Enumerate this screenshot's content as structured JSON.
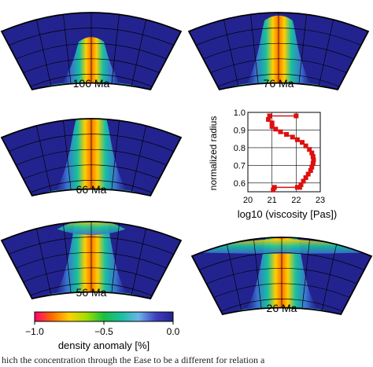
{
  "panels": [
    {
      "label": "106 Ma",
      "stage": 0
    },
    {
      "label": "76 Ma",
      "stage": 1
    },
    {
      "label": "66 Ma",
      "stage": 2
    },
    {
      "label": "56 Ma",
      "stage": 3
    },
    {
      "label": "26 Ma",
      "stage": 4
    }
  ],
  "colorbar": {
    "title": "density anomaly [%]",
    "ticks": [
      "−1.0",
      "−0.5",
      "0.0"
    ],
    "tick_values": [
      -1.0,
      -0.5,
      0.0
    ],
    "colors": [
      "#ff0070",
      "#ff6a00",
      "#ffd000",
      "#a0e000",
      "#18c040",
      "#18c0a0",
      "#6ab4e8",
      "#4040c0",
      "#23238f"
    ]
  },
  "chart_data": {
    "type": "line",
    "title": "",
    "xlabel": "log10 (viscosity [Pas])",
    "ylabel": "normalized radius",
    "xlim": [
      20,
      23
    ],
    "ylim": [
      0.55,
      1.0
    ],
    "xticks": [
      "20",
      "21",
      "22",
      "23"
    ],
    "yticks": [
      "0.6",
      "0.7",
      "0.8",
      "0.9",
      "1.0"
    ],
    "series": [
      {
        "color": "#dd1010",
        "points": [
          [
            22.0,
            0.98
          ],
          [
            20.9,
            0.98
          ],
          [
            20.85,
            0.96
          ],
          [
            21.0,
            0.94
          ],
          [
            21.0,
            0.92
          ],
          [
            21.15,
            0.905
          ],
          [
            21.35,
            0.89
          ],
          [
            21.6,
            0.875
          ],
          [
            21.85,
            0.86
          ],
          [
            22.05,
            0.845
          ],
          [
            22.25,
            0.83
          ],
          [
            22.4,
            0.81
          ],
          [
            22.55,
            0.79
          ],
          [
            22.65,
            0.77
          ],
          [
            22.7,
            0.75
          ],
          [
            22.72,
            0.73
          ],
          [
            22.7,
            0.71
          ],
          [
            22.65,
            0.69
          ],
          [
            22.6,
            0.67
          ],
          [
            22.5,
            0.65
          ],
          [
            22.4,
            0.63
          ],
          [
            22.3,
            0.61
          ],
          [
            22.2,
            0.59
          ],
          [
            22.15,
            0.575
          ],
          [
            22.05,
            0.575
          ],
          [
            21.1,
            0.575
          ],
          [
            21.05,
            0.56
          ]
        ]
      }
    ]
  },
  "caption_text": "hich the concentration through the Ease to be a different for relation a"
}
